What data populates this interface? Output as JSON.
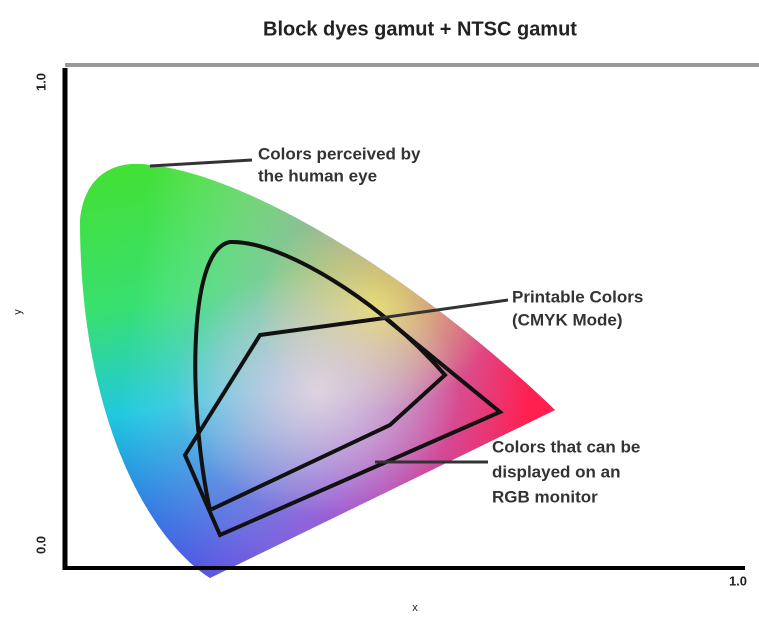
{
  "header": {
    "title": "Block dyes gamut + NTSC gamut"
  },
  "axes": {
    "y_label": "y",
    "x_label": "x",
    "y_top": "1.0",
    "y_bottom": "0.0",
    "x_right": "1.0"
  },
  "regions": [
    {
      "lines": [
        "Colors perceived by",
        "the human eye"
      ]
    },
    {
      "lines": [
        "Printable Colors",
        "(CMYK Mode)"
      ]
    },
    {
      "lines": [
        "Colors that can be",
        "displayed on an",
        "RGB monitor"
      ]
    }
  ]
}
